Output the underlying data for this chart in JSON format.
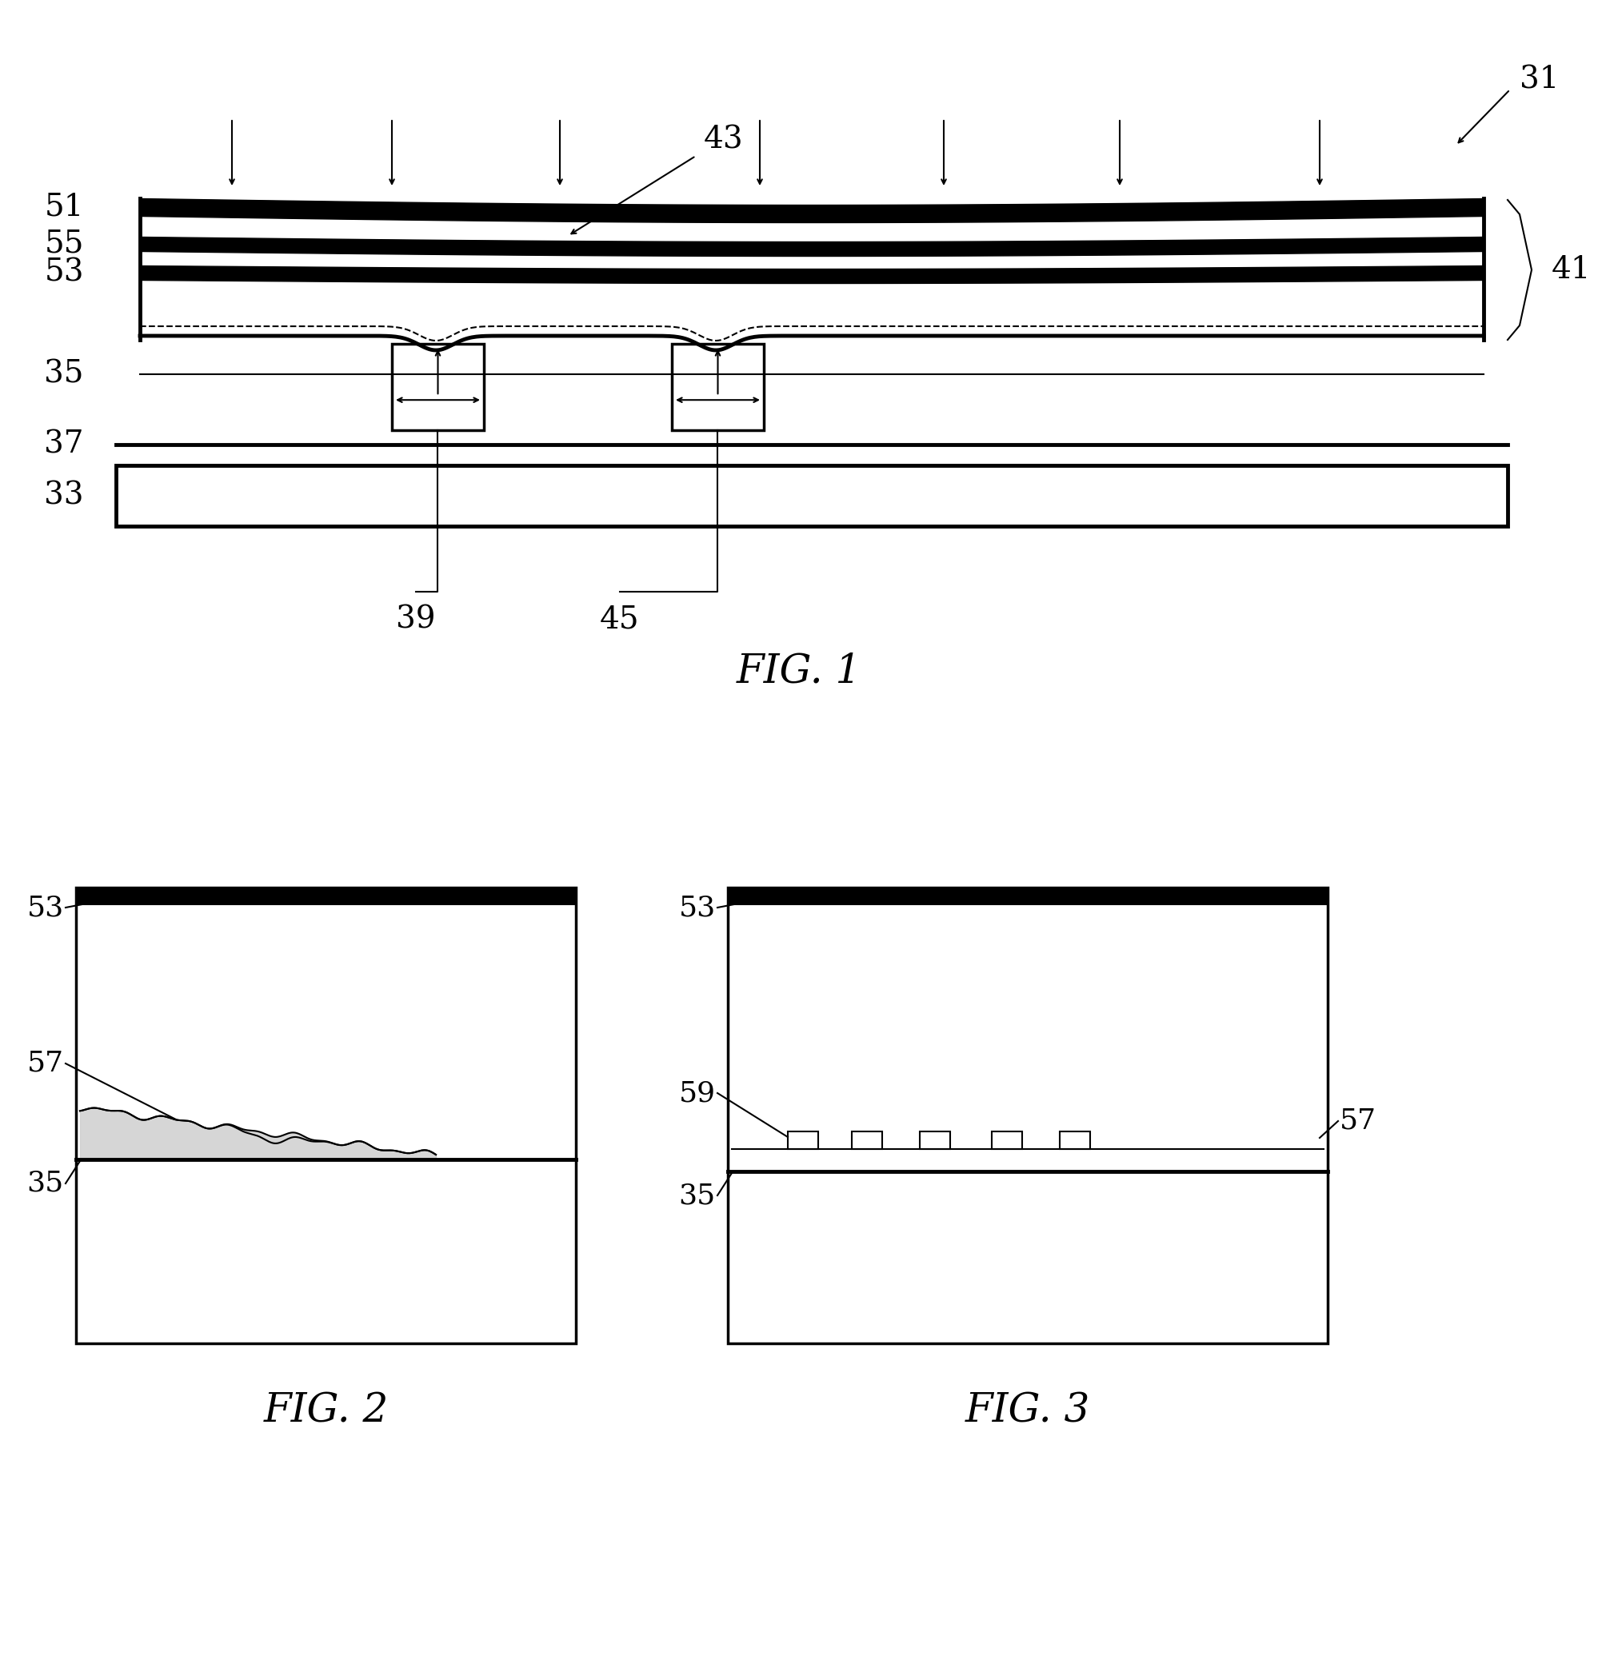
{
  "bg_color": "#ffffff",
  "fig_width": 19.99,
  "fig_height": 20.71,
  "fig1_label": "FIG. 1",
  "fig2_label": "FIG. 2",
  "fig3_label": "FIG. 3"
}
